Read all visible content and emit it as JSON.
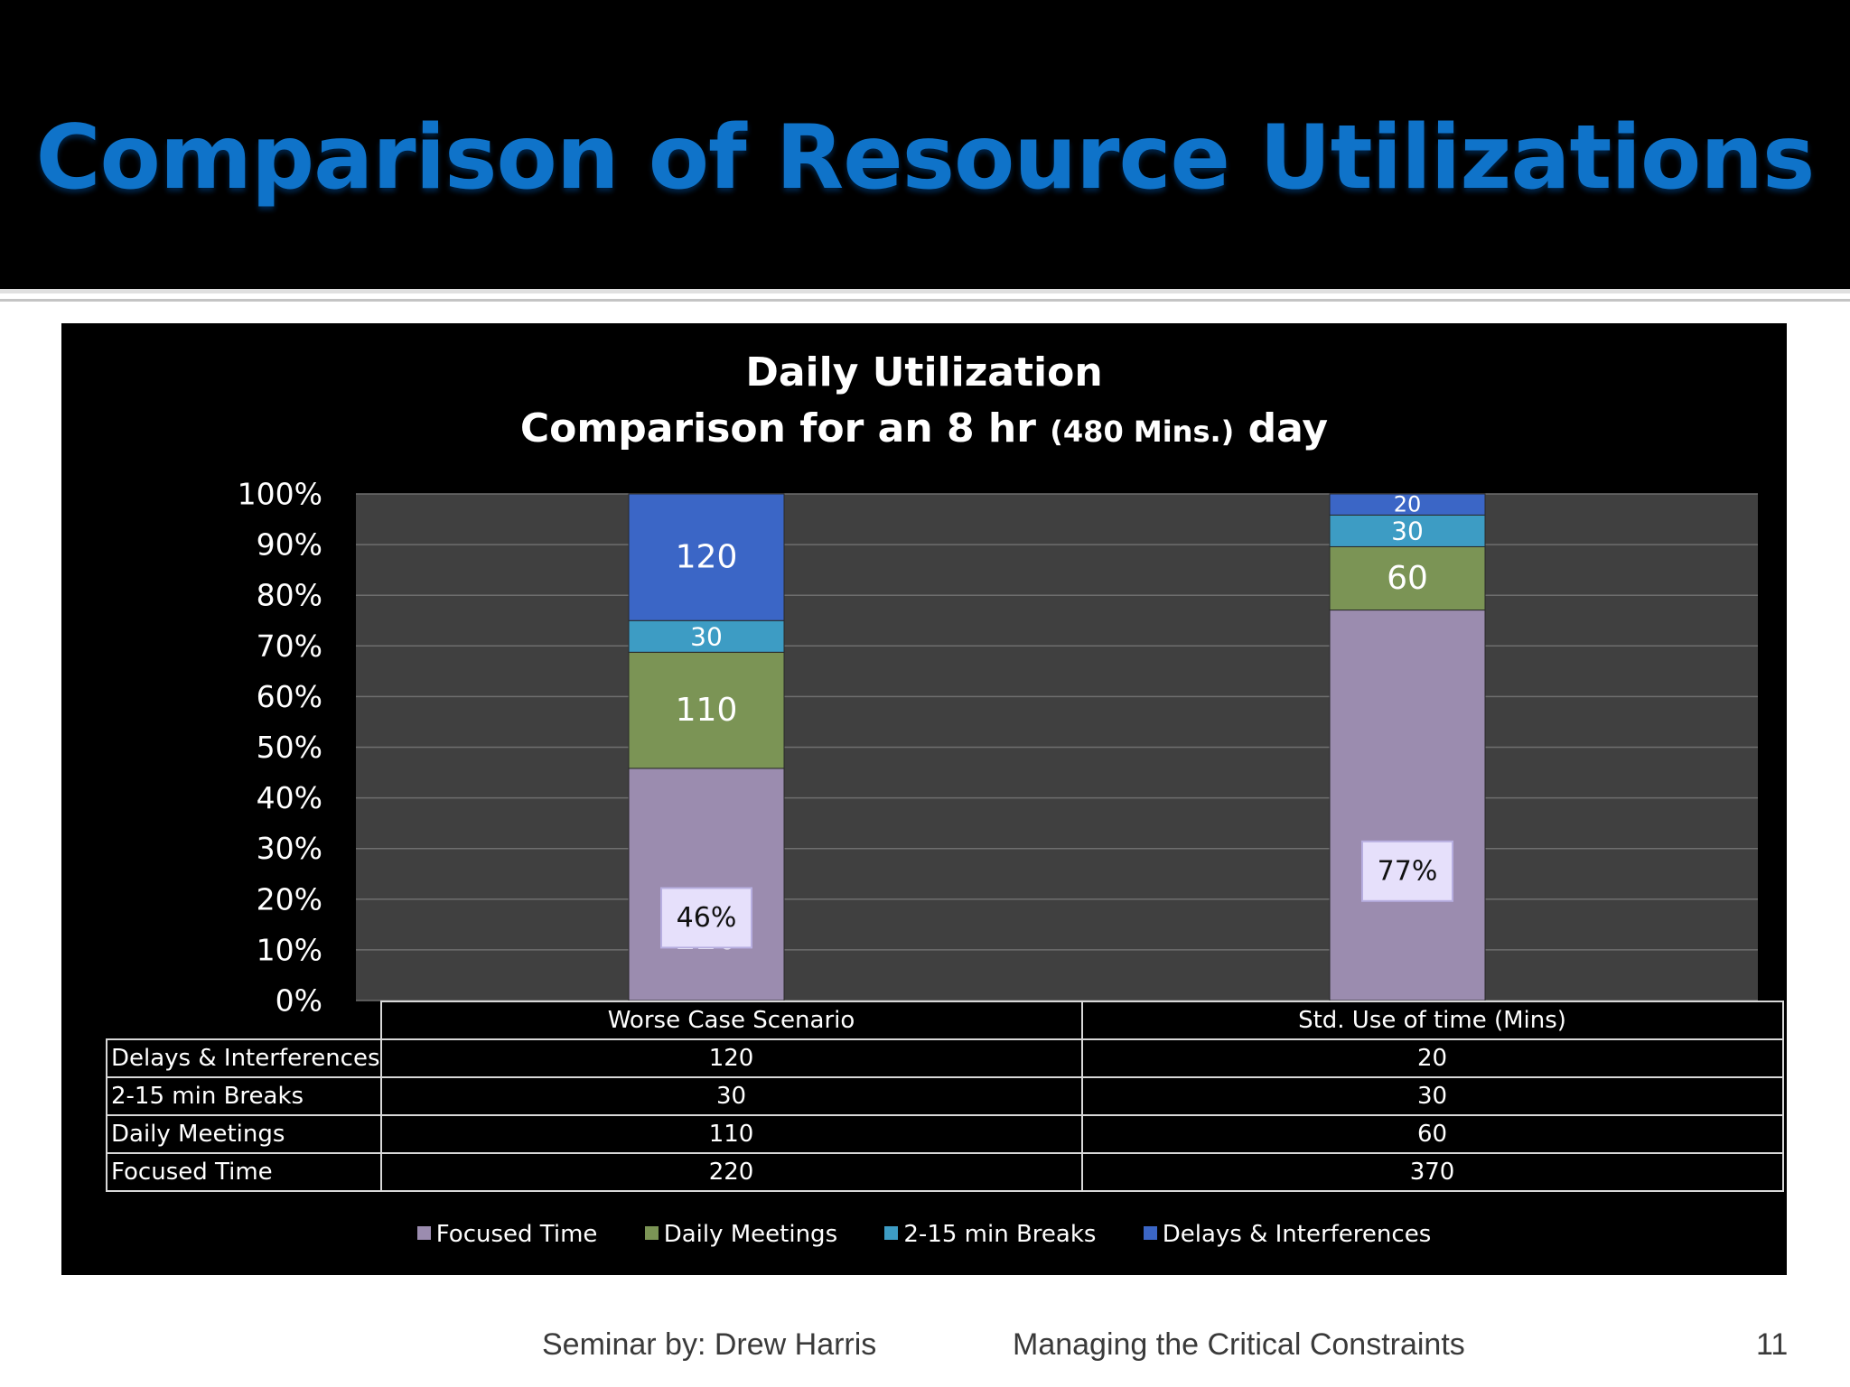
{
  "slide": {
    "title": "Comparison of Resource Utilizations",
    "footer_left": "Seminar by: Drew Harris",
    "footer_center": "Managing the Critical Constraints",
    "page_number": "11"
  },
  "chart_data": {
    "type": "bar",
    "stacking": "100% stacked column",
    "title": "Daily Utilization",
    "subtitle_prefix": "Comparison  for an 8 hr",
    "subtitle_small": "(480 Mins.)",
    "subtitle_suffix": "day",
    "categories": [
      "Worse Case Scenario",
      "Std. Use of time (Mins)"
    ],
    "series": [
      {
        "name": "Focused Time",
        "values": [
          220,
          370
        ],
        "color": "#9b8caf"
      },
      {
        "name": "Daily Meetings",
        "values": [
          110,
          60
        ],
        "color": "#7b9455"
      },
      {
        "name": "2-15 min Breaks",
        "values": [
          30,
          30
        ],
        "color": "#3d9cc4"
      },
      {
        "name": "Delays & Interferences",
        "values": [
          120,
          20
        ],
        "color": "#3b66c6"
      }
    ],
    "table_rows": [
      {
        "label": "Delays & Interferences",
        "values": [
          "120",
          "20"
        ]
      },
      {
        "label": "2-15 min Breaks",
        "values": [
          "30",
          "30"
        ]
      },
      {
        "label": "Daily Meetings",
        "values": [
          "110",
          "60"
        ]
      },
      {
        "label": "Focused Time",
        "values": [
          "220",
          "370"
        ]
      }
    ],
    "callouts": [
      "46%",
      "77%"
    ],
    "y_ticks": [
      "0%",
      "10%",
      "20%",
      "30%",
      "40%",
      "50%",
      "60%",
      "70%",
      "80%",
      "90%",
      "100%"
    ],
    "ylim": [
      0,
      100
    ],
    "grid": true,
    "legend_position": "bottom"
  }
}
